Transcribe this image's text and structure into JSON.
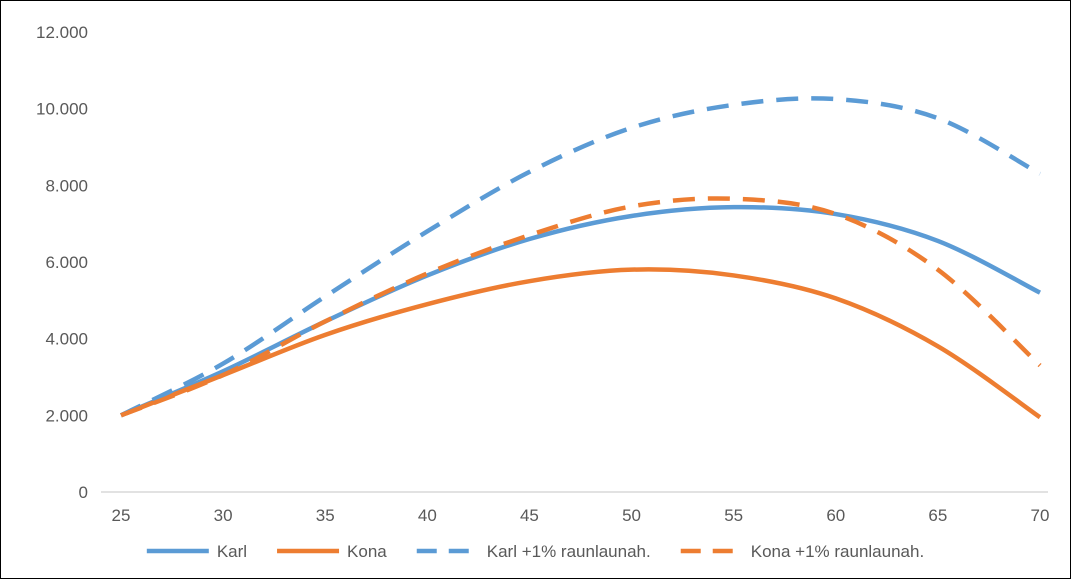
{
  "chart_data": {
    "type": "line",
    "title": "",
    "xlabel": "",
    "ylabel": "",
    "xlim": [
      25,
      70
    ],
    "ylim": [
      0,
      12000
    ],
    "x_ticks": [
      "25",
      "30",
      "35",
      "40",
      "45",
      "50",
      "55",
      "60",
      "65",
      "70"
    ],
    "y_ticks": [
      "0",
      "2.000",
      "4.000",
      "6.000",
      "8.000",
      "10.000",
      "12.000"
    ],
    "grid": false,
    "legend_position": "bottom",
    "series": [
      {
        "name": "Karl",
        "color": "#5b9bd5",
        "dash": "solid",
        "x": [
          25,
          30,
          35,
          40,
          45,
          50,
          55,
          60,
          65,
          70
        ],
        "y": [
          2000,
          3150,
          4450,
          5650,
          6600,
          7200,
          7430,
          7250,
          6550,
          5200
        ]
      },
      {
        "name": "Kona",
        "color": "#ed7d31",
        "dash": "solid",
        "x": [
          25,
          30,
          35,
          40,
          45,
          50,
          55,
          60,
          65,
          70
        ],
        "y": [
          2000,
          3050,
          4100,
          4900,
          5500,
          5800,
          5650,
          5050,
          3800,
          1950
        ]
      },
      {
        "name": "Karl +1% raunlaunah.",
        "color": "#5b9bd5",
        "dash": "dashed",
        "x": [
          25,
          30,
          35,
          40,
          45,
          50,
          55,
          60,
          65,
          70
        ],
        "y": [
          2000,
          3350,
          5100,
          6800,
          8350,
          9500,
          10100,
          10250,
          9750,
          8300
        ]
      },
      {
        "name": "Kona +1% raunlaunah.",
        "color": "#ed7d31",
        "dash": "dashed",
        "x": [
          25,
          30,
          35,
          40,
          45,
          50,
          55,
          60,
          65,
          70
        ],
        "y": [
          2000,
          3050,
          4450,
          5700,
          6700,
          7450,
          7650,
          7250,
          5800,
          3300
        ]
      }
    ]
  }
}
